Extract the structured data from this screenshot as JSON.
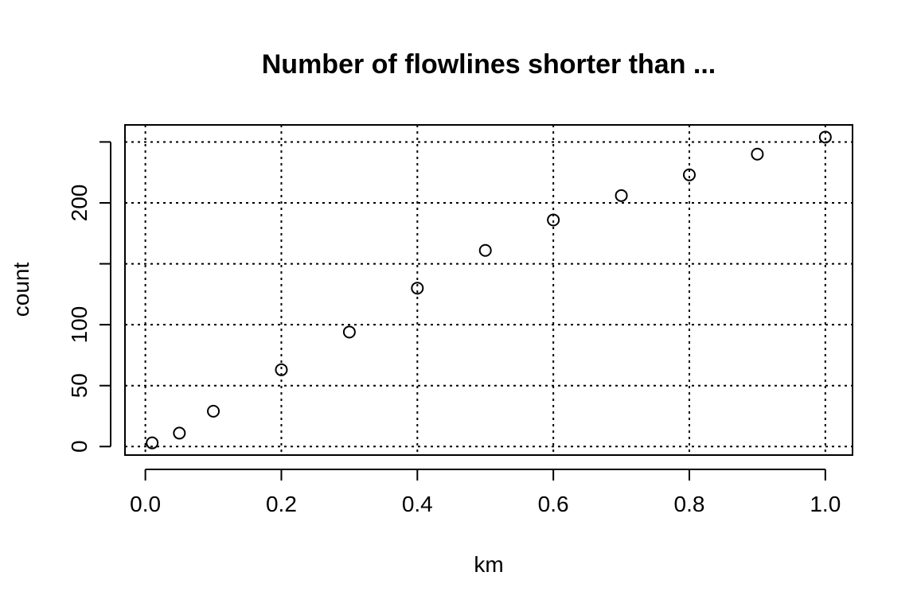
{
  "chart_data": {
    "type": "scatter",
    "title": "Number of flowlines shorter than ...",
    "xlabel": "km",
    "ylabel": "count",
    "x": [
      0.01,
      0.05,
      0.1,
      0.2,
      0.3,
      0.4,
      0.5,
      0.6,
      0.7,
      0.8,
      0.9,
      1.0
    ],
    "y": [
      3,
      11,
      29,
      63,
      94,
      130,
      161,
      186,
      206,
      223,
      240,
      254
    ],
    "xlim": [
      -0.03,
      1.04
    ],
    "ylim": [
      -7,
      264
    ],
    "xticks": [
      0.0,
      0.2,
      0.4,
      0.6,
      0.8,
      1.0
    ],
    "xtick_labels": [
      "0.0",
      "0.2",
      "0.4",
      "0.6",
      "0.8",
      "1.0"
    ],
    "yticks": [
      0,
      50,
      100,
      150,
      200,
      250
    ],
    "ytick_labels": [
      "0",
      "50",
      "100",
      "",
      "200",
      ""
    ],
    "xgrid": [
      0.0,
      0.2,
      0.4,
      0.6,
      0.8,
      1.0
    ],
    "ygrid": [
      0,
      50,
      100,
      150,
      200,
      250
    ],
    "grid": true,
    "grid_style": "dotted",
    "marker": "open-circle"
  }
}
